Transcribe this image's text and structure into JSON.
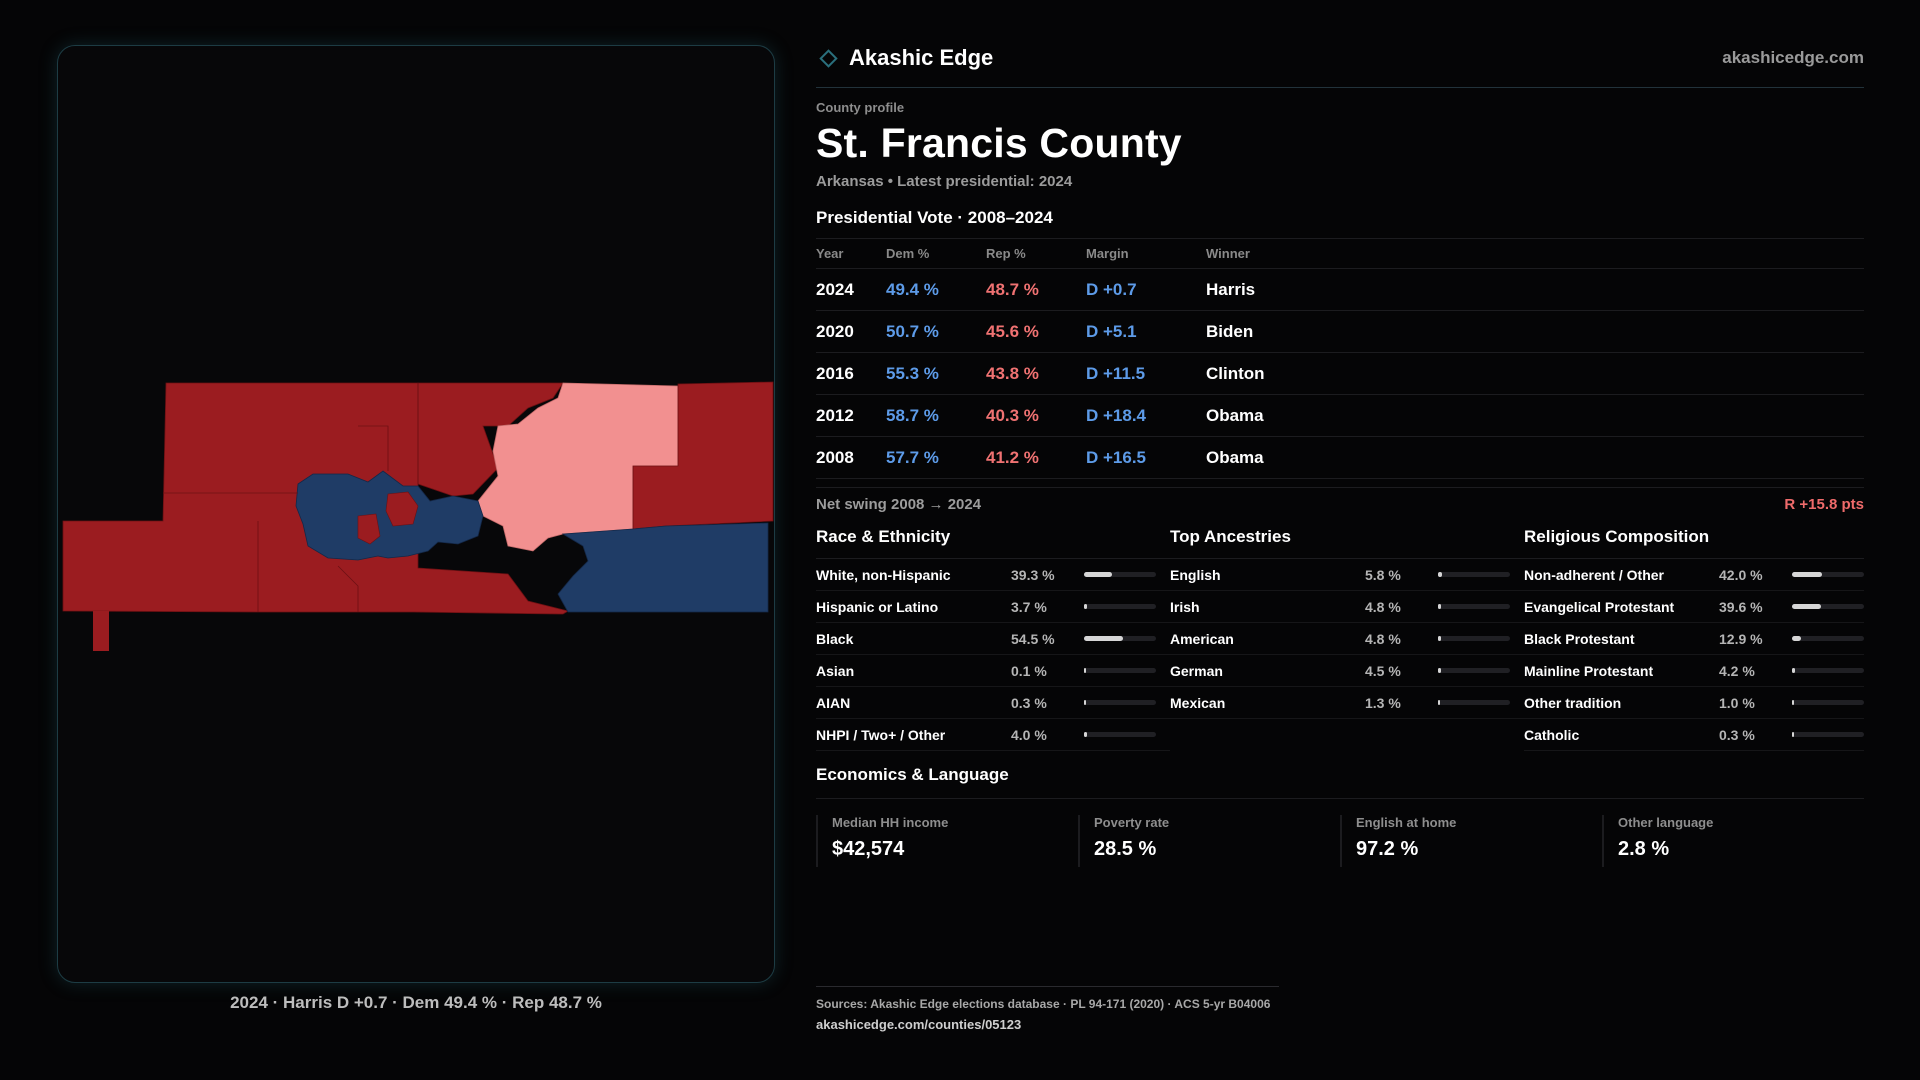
{
  "brand": {
    "name": "Akashic Edge",
    "site": "akashicedge.com",
    "logo_icon": "diamond-icon"
  },
  "profile": {
    "eyebrow": "County profile",
    "title": "St. Francis County",
    "subtitle": "Arkansas • Latest presidential: 2024"
  },
  "vote": {
    "title": "Presidential Vote · 2008–2024",
    "headers": {
      "year": "Year",
      "dem": "Dem %",
      "rep": "Rep %",
      "margin": "Margin",
      "winner": "Winner"
    },
    "rows": [
      {
        "year": "2024",
        "dem": "49.4 %",
        "rep": "48.7 %",
        "margin": "D +0.7",
        "winner": "Harris"
      },
      {
        "year": "2020",
        "dem": "50.7 %",
        "rep": "45.6 %",
        "margin": "D +5.1",
        "winner": "Biden"
      },
      {
        "year": "2016",
        "dem": "55.3 %",
        "rep": "43.8 %",
        "margin": "D +11.5",
        "winner": "Clinton"
      },
      {
        "year": "2012",
        "dem": "58.7 %",
        "rep": "40.3 %",
        "margin": "D +18.4",
        "winner": "Obama"
      },
      {
        "year": "2008",
        "dem": "57.7 %",
        "rep": "41.2 %",
        "margin": "D +16.5",
        "winner": "Obama"
      }
    ]
  },
  "swing": {
    "label": "Net swing 2008 → 2024",
    "value": "R +15.8 pts"
  },
  "race": {
    "title": "Race & Ethnicity",
    "rows": [
      {
        "label": "White, non-Hispanic",
        "value": "39.3 %",
        "pct": 39.3
      },
      {
        "label": "Hispanic or Latino",
        "value": "3.7 %",
        "pct": 3.7
      },
      {
        "label": "Black",
        "value": "54.5 %",
        "pct": 54.5
      },
      {
        "label": "Asian",
        "value": "0.1 %",
        "pct": 0.1
      },
      {
        "label": "AIAN",
        "value": "0.3 %",
        "pct": 0.3
      },
      {
        "label": "NHPI / Two+ / Other",
        "value": "4.0 %",
        "pct": 4.0
      }
    ]
  },
  "ancestry": {
    "title": "Top Ancestries",
    "rows": [
      {
        "label": "English",
        "value": "5.8 %",
        "pct": 5.8
      },
      {
        "label": "Irish",
        "value": "4.8 %",
        "pct": 4.8
      },
      {
        "label": "American",
        "value": "4.8 %",
        "pct": 4.8
      },
      {
        "label": "German",
        "value": "4.5 %",
        "pct": 4.5
      },
      {
        "label": "Mexican",
        "value": "1.3 %",
        "pct": 1.3
      }
    ]
  },
  "religion": {
    "title": "Religious Composition",
    "rows": [
      {
        "label": "Non-adherent / Other",
        "value": "42.0 %",
        "pct": 42.0
      },
      {
        "label": "Evangelical Protestant",
        "value": "39.6 %",
        "pct": 39.6
      },
      {
        "label": "Black Protestant",
        "value": "12.9 %",
        "pct": 12.9
      },
      {
        "label": "Mainline Protestant",
        "value": "4.2 %",
        "pct": 4.2
      },
      {
        "label": "Other tradition",
        "value": "1.0 %",
        "pct": 1.0
      },
      {
        "label": "Catholic",
        "value": "0.3 %",
        "pct": 0.3
      }
    ]
  },
  "economics": {
    "title": "Economics & Language",
    "cards": [
      {
        "label": "Median HH income",
        "value": "$42,574"
      },
      {
        "label": "Poverty rate",
        "value": "28.5 %"
      },
      {
        "label": "English at home",
        "value": "97.2 %"
      },
      {
        "label": "Other language",
        "value": "2.8 %"
      }
    ]
  },
  "map": {
    "caption": "2024 · Harris D +0.7 · Dem 49.4 % · Rep 48.7 %",
    "colors": {
      "rep_strong": "#9b1c20",
      "rep_light": "#f29090",
      "dem": "#1f3c66",
      "panel_border": "#1d3c44"
    }
  },
  "sources": {
    "line": "Sources: Akashic Edge elections database · PL 94-171 (2020) · ACS 5-yr B04006",
    "link": "akashicedge.com/counties/05123"
  },
  "colors": {
    "dem_text": "#5d9be8",
    "rep_text": "#f07272",
    "background": "#050506"
  }
}
